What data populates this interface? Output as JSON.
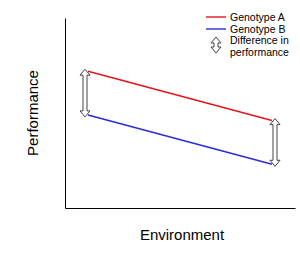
{
  "chart_data": {
    "type": "line",
    "x_label": "Environment",
    "y_label": "Performance",
    "x": [
      1,
      9
    ],
    "series": [
      {
        "name": "Genotype A",
        "color": "#e8141c",
        "values": [
          7.2,
          4.6
        ]
      },
      {
        "name": "Genotype B",
        "color": "#2b2bd9",
        "values": [
          4.9,
          2.3
        ]
      }
    ],
    "annotations": [
      "Difference in performance"
    ],
    "xlim": [
      0,
      10
    ],
    "ylim": [
      0,
      10
    ],
    "xticks": [],
    "yticks": [],
    "tick_labels": false,
    "grid": false,
    "legend": "upper right"
  }
}
